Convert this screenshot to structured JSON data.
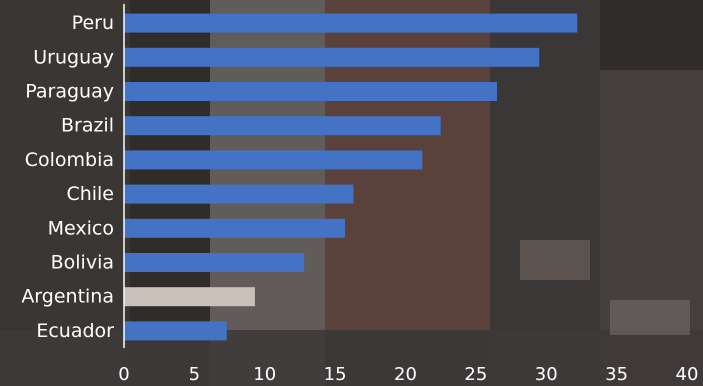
{
  "chart_data": {
    "type": "bar",
    "orientation": "horizontal",
    "categories": [
      "Peru",
      "Uruguay",
      "Paraguay",
      "Brazil",
      "Colombia",
      "Chile",
      "Mexico",
      "Bolivia",
      "Argentina",
      "Ecuador"
    ],
    "values": [
      32.2,
      29.5,
      26.5,
      22.5,
      21.2,
      16.3,
      15.7,
      12.8,
      9.3,
      7.3
    ],
    "highlighted_category": "Argentina",
    "xlim": [
      0,
      40
    ],
    "xticks": [
      "0",
      "5",
      "10",
      "15",
      "20",
      "25",
      "30",
      "35",
      "40"
    ],
    "grid": false,
    "legend": "none",
    "colors": {
      "bar": "#4472c4",
      "highlight": "#c9c1b9",
      "axis": "#ffffff",
      "text": "#ffffff",
      "background": "#2f2c2a"
    }
  }
}
